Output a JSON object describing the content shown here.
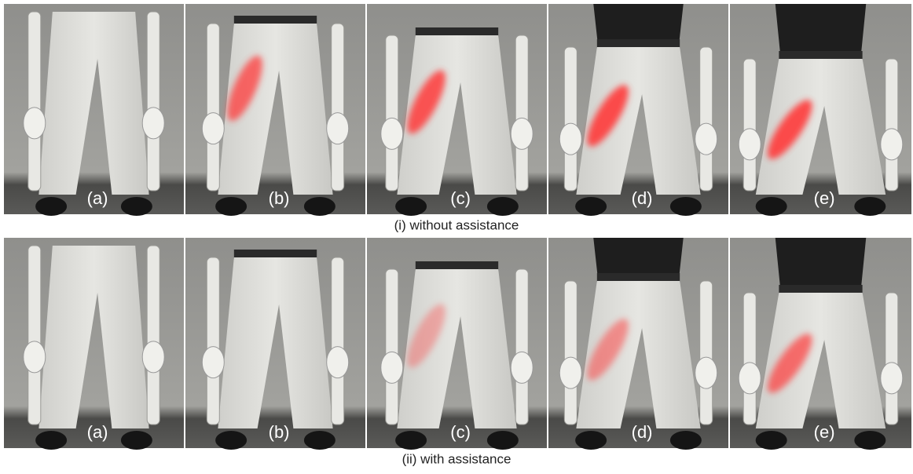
{
  "rows": [
    {
      "caption": "(i) without assistance",
      "panels": [
        {
          "label": "(a)"
        },
        {
          "label": "(b)"
        },
        {
          "label": "(c)"
        },
        {
          "label": "(d)"
        },
        {
          "label": "(e)"
        }
      ]
    },
    {
      "caption": "(ii) with assistance",
      "panels": [
        {
          "label": "(a)"
        },
        {
          "label": "(b)"
        },
        {
          "label": "(c)"
        },
        {
          "label": "(d)"
        },
        {
          "label": "(e)"
        }
      ]
    }
  ]
}
